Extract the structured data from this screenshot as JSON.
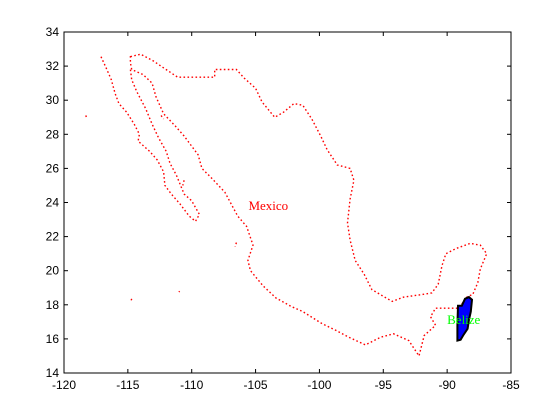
{
  "chart_data": {
    "type": "map",
    "xlim": [
      -120,
      -85
    ],
    "ylim": [
      14,
      34
    ],
    "x_ticks": [
      -120,
      -115,
      -110,
      -105,
      -100,
      -95,
      -90,
      -85
    ],
    "y_ticks": [
      14,
      16,
      18,
      20,
      22,
      24,
      26,
      28,
      30,
      32,
      34
    ],
    "x_tick_labels": [
      "-120",
      "-115",
      "-110",
      "-105",
      "-100",
      "-95",
      "-90",
      "-85"
    ],
    "y_tick_labels": [
      "14",
      "16",
      "18",
      "20",
      "22",
      "24",
      "26",
      "28",
      "30",
      "32",
      "34"
    ],
    "grid": false,
    "labels": [
      {
        "text": "Mexico",
        "lon": -104.0,
        "lat": 23.8,
        "color": "#ff0000"
      },
      {
        "text": "Belize",
        "lon": -88.7,
        "lat": 17.1,
        "color": "#00ff00"
      }
    ],
    "mexico": {
      "color": "#ff0000",
      "style": "dotted",
      "outline": [
        [
          -114.8,
          32.55
        ],
        [
          -114.0,
          32.7
        ],
        [
          -113.0,
          32.3
        ],
        [
          -112.3,
          31.95
        ],
        [
          -111.1,
          31.35
        ],
        [
          -110.0,
          31.35
        ],
        [
          -108.2,
          31.35
        ],
        [
          -108.2,
          31.8
        ],
        [
          -106.5,
          31.8
        ],
        [
          -105.9,
          31.3
        ],
        [
          -105.0,
          30.7
        ],
        [
          -104.5,
          29.9
        ],
        [
          -103.5,
          29.0
        ],
        [
          -102.8,
          29.3
        ],
        [
          -102.0,
          29.8
        ],
        [
          -101.3,
          29.7
        ],
        [
          -100.6,
          28.9
        ],
        [
          -99.9,
          27.9
        ],
        [
          -99.4,
          27.1
        ],
        [
          -98.6,
          26.2
        ],
        [
          -97.6,
          26.0
        ],
        [
          -97.3,
          25.3
        ],
        [
          -97.6,
          24.2
        ],
        [
          -97.8,
          22.8
        ],
        [
          -97.6,
          21.8
        ],
        [
          -97.2,
          20.6
        ],
        [
          -96.5,
          19.8
        ],
        [
          -95.9,
          18.9
        ],
        [
          -95.0,
          18.5
        ],
        [
          -94.3,
          18.2
        ],
        [
          -93.4,
          18.45
        ],
        [
          -92.0,
          18.6
        ],
        [
          -91.2,
          18.7
        ],
        [
          -90.7,
          19.2
        ],
        [
          -90.4,
          20.3
        ],
        [
          -90.1,
          21.0
        ],
        [
          -89.3,
          21.3
        ],
        [
          -88.2,
          21.6
        ],
        [
          -87.4,
          21.5
        ],
        [
          -86.9,
          21.0
        ],
        [
          -87.4,
          20.1
        ],
        [
          -87.6,
          19.3
        ],
        [
          -88.0,
          18.6
        ],
        [
          -88.4,
          18.5
        ],
        [
          -89.1,
          17.8
        ],
        [
          -90.9,
          17.8
        ],
        [
          -91.3,
          17.3
        ],
        [
          -90.9,
          16.8
        ],
        [
          -91.8,
          16.2
        ],
        [
          -92.2,
          15.0
        ],
        [
          -93.0,
          15.9
        ],
        [
          -94.2,
          16.3
        ],
        [
          -95.2,
          16.1
        ],
        [
          -96.4,
          15.65
        ],
        [
          -97.7,
          16.1
        ],
        [
          -98.7,
          16.5
        ],
        [
          -99.8,
          16.9
        ],
        [
          -101.3,
          17.6
        ],
        [
          -102.2,
          17.9
        ],
        [
          -103.4,
          18.4
        ],
        [
          -104.4,
          19.1
        ],
        [
          -105.4,
          20.0
        ],
        [
          -105.6,
          20.6
        ],
        [
          -105.2,
          21.5
        ],
        [
          -105.7,
          22.6
        ],
        [
          -106.4,
          23.2
        ],
        [
          -107.4,
          24.6
        ],
        [
          -108.4,
          25.4
        ],
        [
          -109.2,
          26.0
        ],
        [
          -109.5,
          26.8
        ],
        [
          -110.6,
          27.9
        ],
        [
          -111.3,
          28.5
        ],
        [
          -112.2,
          29.2
        ],
        [
          -112.8,
          30.2
        ],
        [
          -113.1,
          31.0
        ],
        [
          -113.8,
          31.5
        ],
        [
          -114.7,
          31.8
        ],
        [
          -114.8,
          32.2
        ]
      ],
      "baja": [
        [
          -117.1,
          32.55
        ],
        [
          -116.7,
          31.9
        ],
        [
          -116.3,
          31.2
        ],
        [
          -116.0,
          30.4
        ],
        [
          -115.7,
          29.8
        ],
        [
          -115.1,
          29.3
        ],
        [
          -114.5,
          28.6
        ],
        [
          -114.1,
          28.0
        ],
        [
          -114.2,
          27.6
        ],
        [
          -113.3,
          27.0
        ],
        [
          -112.7,
          26.5
        ],
        [
          -112.2,
          25.8
        ],
        [
          -112.1,
          25.0
        ],
        [
          -111.6,
          24.5
        ],
        [
          -110.9,
          23.9
        ],
        [
          -110.2,
          23.2
        ],
        [
          -109.7,
          22.9
        ],
        [
          -109.4,
          23.3
        ],
        [
          -110.0,
          24.1
        ],
        [
          -110.6,
          24.5
        ],
        [
          -111.2,
          25.6
        ],
        [
          -111.7,
          26.3
        ],
        [
          -112.0,
          27.0
        ],
        [
          -112.6,
          27.8
        ],
        [
          -113.1,
          28.6
        ],
        [
          -113.6,
          29.5
        ],
        [
          -114.3,
          30.5
        ],
        [
          -114.7,
          31.2
        ],
        [
          -114.8,
          31.8
        ]
      ],
      "islands": [
        [
          [
            -118.3,
            29.1
          ],
          [
            -118.2,
            28.95
          ]
        ],
        [
          [
            -112.4,
            29.1
          ],
          [
            -112.2,
            28.9
          ]
        ],
        [
          [
            -110.6,
            25.3
          ],
          [
            -110.7,
            25.0
          ]
        ],
        [
          [
            -106.5,
            21.65
          ],
          [
            -106.6,
            21.4
          ]
        ],
        [
          [
            -110.95,
            18.8
          ],
          [
            -111.0,
            18.75
          ]
        ],
        [
          [
            -114.7,
            18.35
          ],
          [
            -114.75,
            18.25
          ]
        ]
      ]
    },
    "belize": {
      "fill": "#0000ff",
      "stroke": "#000000",
      "outline": [
        [
          -89.15,
          17.95
        ],
        [
          -88.85,
          17.95
        ],
        [
          -88.6,
          18.35
        ],
        [
          -88.3,
          18.45
        ],
        [
          -88.05,
          18.3
        ],
        [
          -88.15,
          17.6
        ],
        [
          -88.3,
          17.1
        ],
        [
          -88.4,
          16.6
        ],
        [
          -88.75,
          16.2
        ],
        [
          -88.95,
          15.95
        ],
        [
          -89.2,
          15.9
        ],
        [
          -89.2,
          16.8
        ]
      ]
    }
  }
}
